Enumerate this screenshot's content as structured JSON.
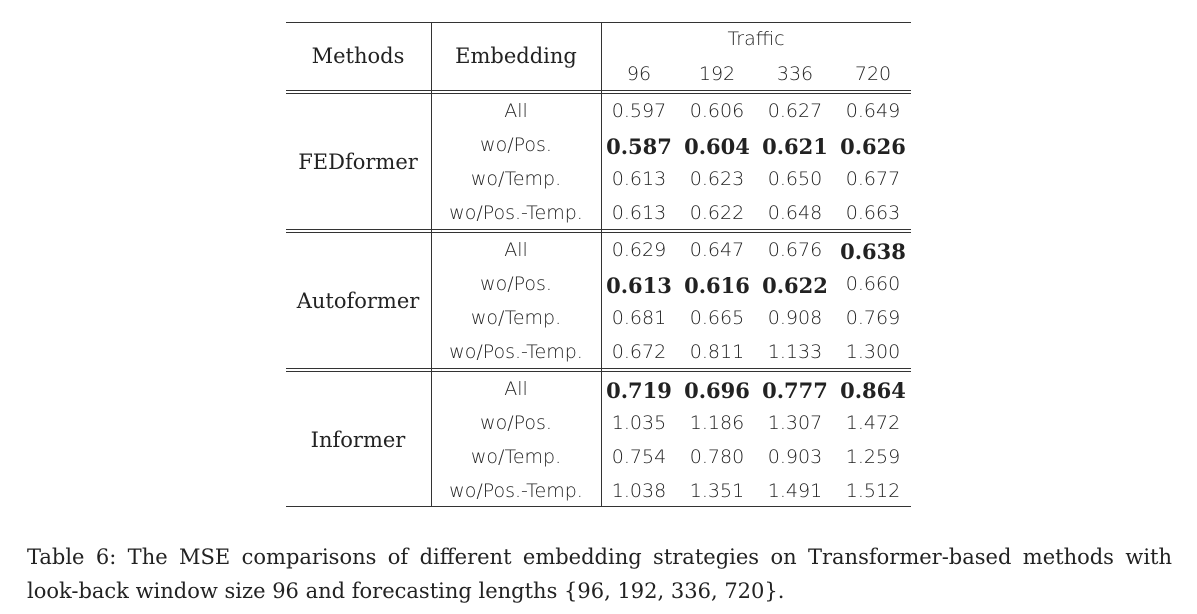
{
  "table": {
    "headers": {
      "methods": "Methods",
      "embedding": "Embedding",
      "dataset": "Traffic",
      "horizons": [
        "96",
        "192",
        "336",
        "720"
      ]
    },
    "groups": [
      {
        "method": "FEDformer",
        "rows": [
          {
            "embedding": "All",
            "values": [
              "0.597",
              "0.606",
              "0.627",
              "0.649"
            ],
            "bold": [
              false,
              false,
              false,
              false
            ]
          },
          {
            "embedding": "wo/Pos.",
            "values": [
              "0.587",
              "0.604",
              "0.621",
              "0.626"
            ],
            "bold": [
              true,
              true,
              true,
              true
            ]
          },
          {
            "embedding": "wo/Temp.",
            "values": [
              "0.613",
              "0.623",
              "0.650",
              "0.677"
            ],
            "bold": [
              false,
              false,
              false,
              false
            ]
          },
          {
            "embedding": "wo/Pos.-Temp.",
            "values": [
              "0.613",
              "0.622",
              "0.648",
              "0.663"
            ],
            "bold": [
              false,
              false,
              false,
              false
            ]
          }
        ]
      },
      {
        "method": "Autoformer",
        "rows": [
          {
            "embedding": "All",
            "values": [
              "0.629",
              "0.647",
              "0.676",
              "0.638"
            ],
            "bold": [
              false,
              false,
              false,
              true
            ]
          },
          {
            "embedding": "wo/Pos.",
            "values": [
              "0.613",
              "0.616",
              "0.622",
              "0.660"
            ],
            "bold": [
              true,
              true,
              true,
              false
            ]
          },
          {
            "embedding": "wo/Temp.",
            "values": [
              "0.681",
              "0.665",
              "0.908",
              "0.769"
            ],
            "bold": [
              false,
              false,
              false,
              false
            ]
          },
          {
            "embedding": "wo/Pos.-Temp.",
            "values": [
              "0.672",
              "0.811",
              "1.133",
              "1.300"
            ],
            "bold": [
              false,
              false,
              false,
              false
            ]
          }
        ]
      },
      {
        "method": "Informer",
        "rows": [
          {
            "embedding": "All",
            "values": [
              "0.719",
              "0.696",
              "0.777",
              "0.864"
            ],
            "bold": [
              true,
              true,
              true,
              true
            ]
          },
          {
            "embedding": "wo/Pos.",
            "values": [
              "1.035",
              "1.186",
              "1.307",
              "1.472"
            ],
            "bold": [
              false,
              false,
              false,
              false
            ]
          },
          {
            "embedding": "wo/Temp.",
            "values": [
              "0.754",
              "0.780",
              "0.903",
              "1.259"
            ],
            "bold": [
              false,
              false,
              false,
              false
            ]
          },
          {
            "embedding": "wo/Pos.-Temp.",
            "values": [
              "1.038",
              "1.351",
              "1.491",
              "1.512"
            ],
            "bold": [
              false,
              false,
              false,
              false
            ]
          }
        ]
      }
    ]
  },
  "caption": "Table 6: The MSE comparisons of different embedding strategies on Transformer-based methods with look-back window size 96 and forecasting lengths {96, 192, 336, 720}."
}
